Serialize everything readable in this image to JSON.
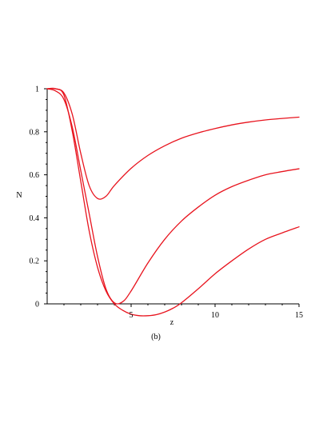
{
  "chart_data": {
    "type": "line",
    "title": "",
    "caption": "(b)",
    "xlabel": "z",
    "ylabel": "N",
    "xlim": [
      0,
      15
    ],
    "ylim": [
      0,
      1
    ],
    "x_ticks": [
      5,
      10,
      15
    ],
    "x_tick_labels": [
      "5",
      "10",
      "15"
    ],
    "y_ticks": [
      0,
      0.2,
      0.4,
      0.6,
      0.8,
      1
    ],
    "y_tick_labels": [
      "0",
      "0.2",
      "0.4",
      "0.6",
      "0.8",
      "1"
    ],
    "grid": false,
    "legend": "none",
    "line_color": "#e8141e",
    "series": [
      {
        "x": [
          0,
          0.5,
          1,
          1.5,
          2,
          2.5,
          3,
          3.5,
          4,
          5,
          6,
          7,
          8,
          9,
          10,
          11,
          12,
          13,
          14,
          15
        ],
        "y": [
          1,
          1,
          0.98,
          0.88,
          0.7,
          0.55,
          0.49,
          0.5,
          0.55,
          0.63,
          0.69,
          0.735,
          0.77,
          0.795,
          0.815,
          0.832,
          0.845,
          0.855,
          0.862,
          0.868
        ]
      },
      {
        "x": [
          0,
          0.5,
          1,
          1.5,
          2,
          2.5,
          3,
          3.5,
          4,
          4.5,
          5,
          6,
          7,
          8,
          9,
          10,
          11,
          12,
          13,
          14,
          15
        ],
        "y": [
          1,
          0.99,
          0.95,
          0.82,
          0.62,
          0.42,
          0.22,
          0.07,
          0.005,
          0.01,
          0.06,
          0.19,
          0.3,
          0.385,
          0.45,
          0.505,
          0.545,
          0.575,
          0.6,
          0.615,
          0.628
        ]
      },
      {
        "x": [
          0,
          0.5,
          1,
          1.5,
          2,
          2.5,
          3,
          3.5,
          4,
          4.5,
          5,
          5.5,
          6,
          6.5,
          7,
          7.5,
          8,
          9,
          10,
          11,
          12,
          13,
          14,
          15
        ],
        "y": [
          1,
          1,
          0.97,
          0.8,
          0.57,
          0.34,
          0.17,
          0.06,
          0,
          -0.03,
          -0.048,
          -0.055,
          -0.055,
          -0.05,
          -0.038,
          -0.02,
          0.005,
          0.07,
          0.14,
          0.2,
          0.255,
          0.3,
          0.33,
          0.358
        ]
      }
    ]
  }
}
